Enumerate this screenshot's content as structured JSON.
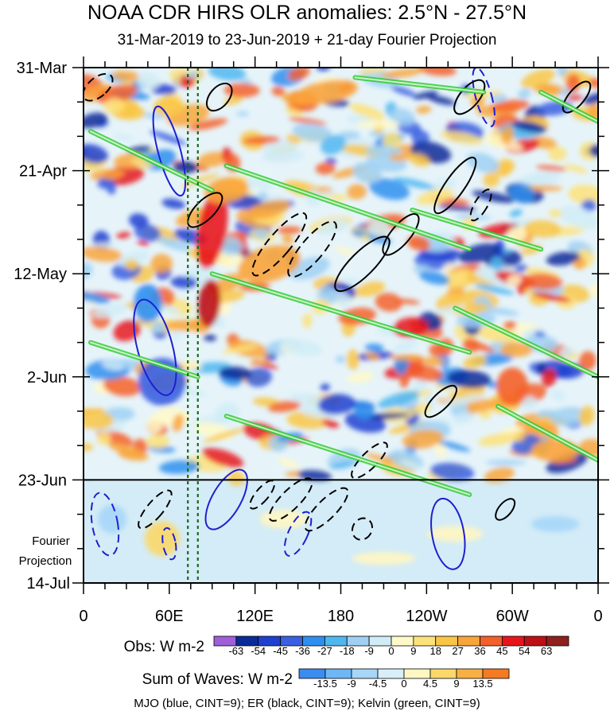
{
  "chart_data": {
    "type": "heatmap",
    "title": "NOAA CDR HIRS OLR anomalies: 2.5°N - 27.5°N",
    "subtitle": "31-Mar-2019 to 23-Jun-2019 + 21-day Fourier Projection",
    "x_ticks": [
      "0",
      "60E",
      "120E",
      "180",
      "120W",
      "60W",
      "0"
    ],
    "x_tick_values": [
      0,
      60,
      120,
      180,
      240,
      300,
      360
    ],
    "xlim": [
      0,
      360
    ],
    "y_ticks": [
      "31-Mar",
      "21-Apr",
      "12-May",
      "2-Jun",
      "23-Jun",
      "14-Jul"
    ],
    "y_tick_days": [
      0,
      21,
      42,
      63,
      84,
      105
    ],
    "ylim_days": [
      0,
      105
    ],
    "projection_start_day": 84,
    "projection_label_line1": "Fourier",
    "projection_label_line2": "Projection",
    "reference_lines_deg": [
      73,
      80
    ],
    "obs_colorbar": {
      "title": "Obs: W m-2",
      "levels": [
        "-63",
        "-54",
        "-45",
        "-36",
        "-27",
        "-18",
        "-9",
        "0",
        "9",
        "18",
        "27",
        "36",
        "45",
        "54",
        "63"
      ],
      "colors": [
        "#9f5fd7",
        "#0a2a9a",
        "#1f3fd0",
        "#3a5fe0",
        "#2f8fef",
        "#4fb7f0",
        "#9fd0f3",
        "#d0ecf7",
        "#fff9c8",
        "#fde27a",
        "#f9c544",
        "#f9a43a",
        "#f4602a",
        "#e8141c",
        "#bd0f16",
        "#902020"
      ]
    },
    "waves_colorbar": {
      "title": "Sum of Waves: W m-2",
      "levels": [
        "-13.5",
        "-9",
        "-4.5",
        "0",
        "4.5",
        "9",
        "13.5"
      ],
      "colors": [
        "#3a8df0",
        "#6eb6f5",
        "#a6d6f8",
        "#d8eef9",
        "#fff6c2",
        "#fbd86a",
        "#f9b042",
        "#f67a22"
      ]
    },
    "footnote": "MJO (blue, CINT=9); ER (black, CINT=9); Kelvin (green, CINT=9)",
    "contours": {
      "mjo_color": "#1f1fd0",
      "er_color": "#000000",
      "kelvin_color": "#33cc33"
    },
    "grid": false
  }
}
